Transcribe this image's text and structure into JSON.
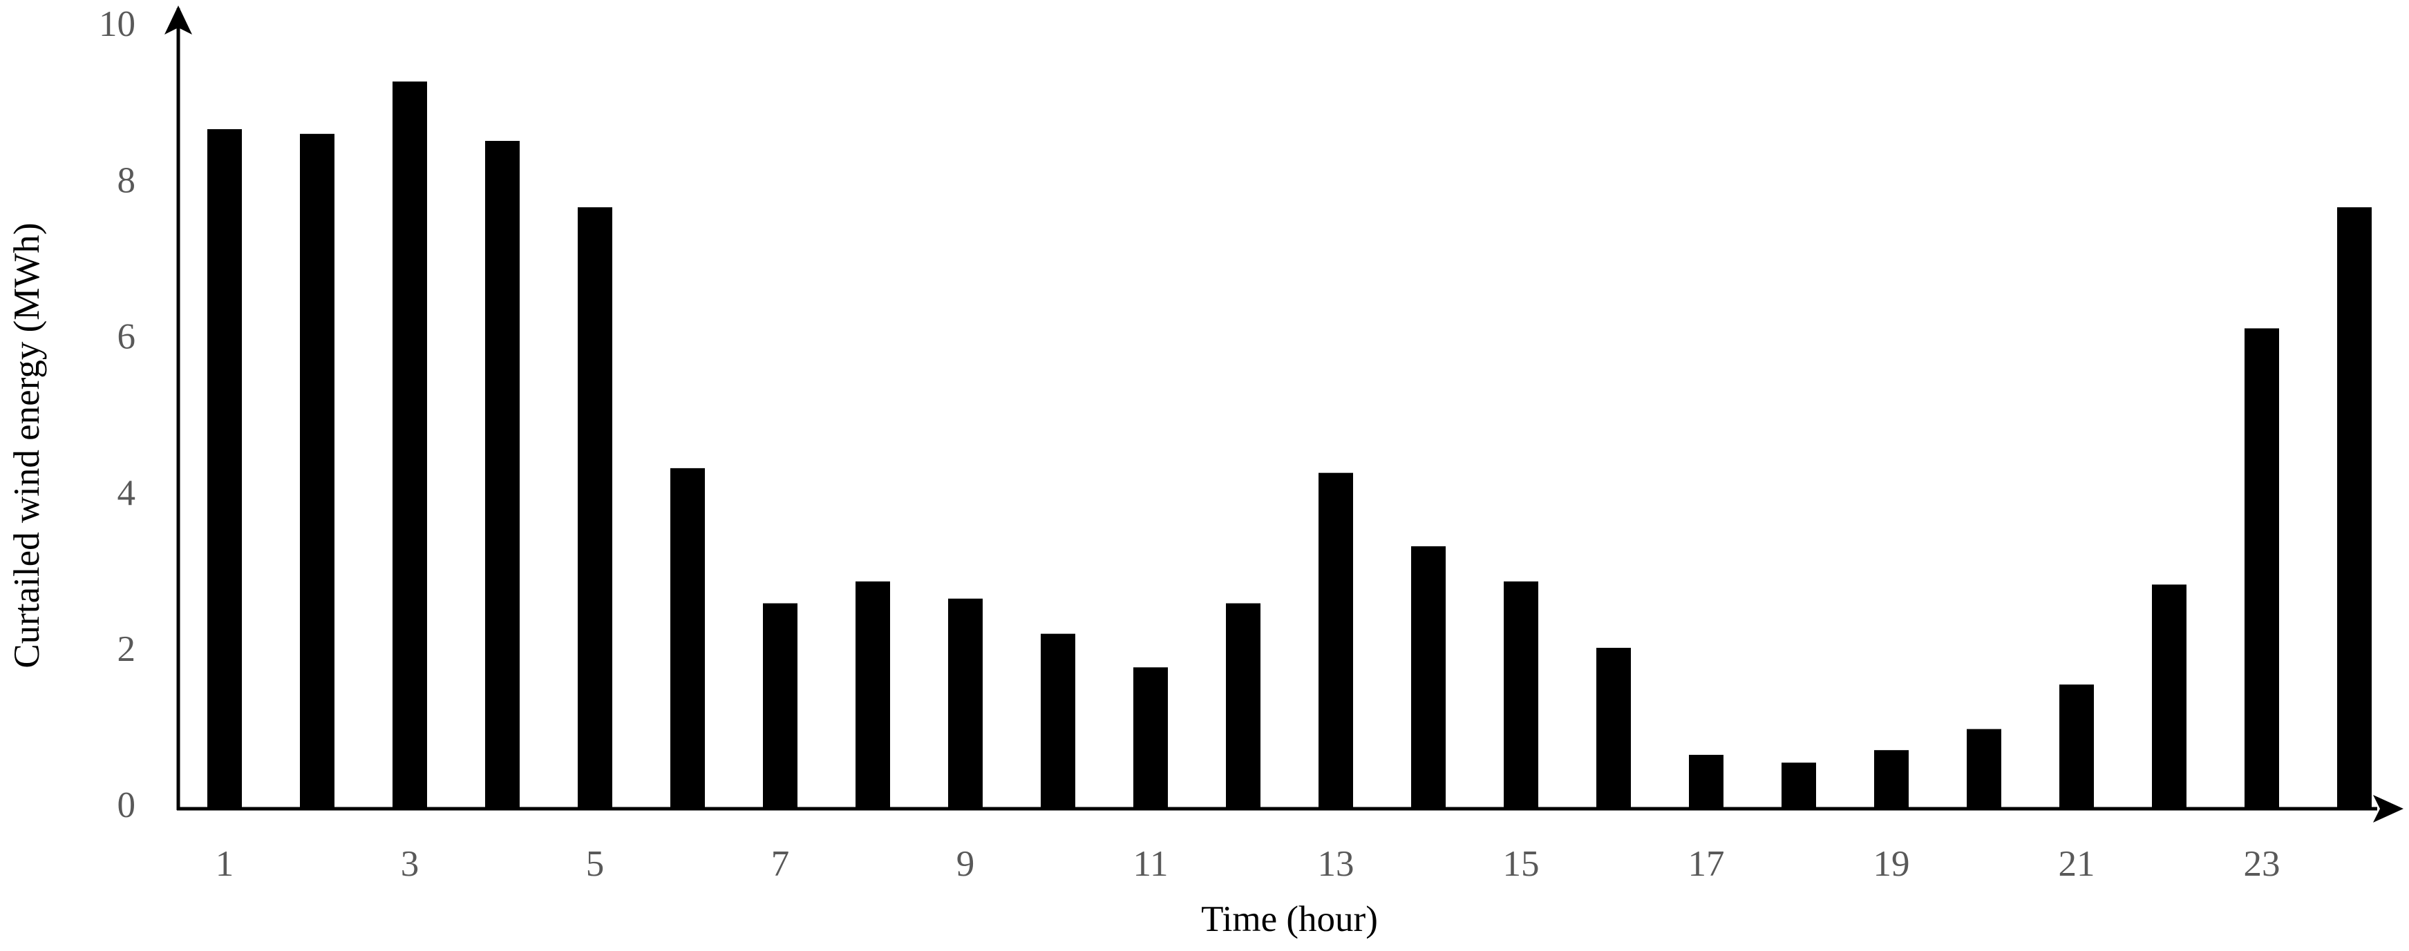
{
  "chart_data": {
    "type": "bar",
    "x_label": "Time (hour)",
    "y_label": "Curtailed wind energy (MWh)",
    "categories": [
      "1",
      null,
      "3",
      null,
      "5",
      null,
      "7",
      null,
      "9",
      null,
      "11",
      null,
      "13",
      null,
      "15",
      null,
      "17",
      null,
      "19",
      null,
      "21",
      null,
      "23",
      null
    ],
    "values": [
      8.7,
      8.64,
      9.31,
      8.55,
      7.7,
      4.36,
      2.63,
      2.91,
      2.69,
      2.24,
      1.81,
      2.63,
      4.3,
      3.36,
      2.91,
      2.06,
      0.69,
      0.59,
      0.75,
      1.02,
      1.59,
      2.87,
      6.15,
      7.7
    ],
    "color": "#000000",
    "ylim": [
      0,
      10
    ],
    "yticks": [
      0,
      2,
      4,
      6,
      8,
      10
    ],
    "grid": false
  }
}
